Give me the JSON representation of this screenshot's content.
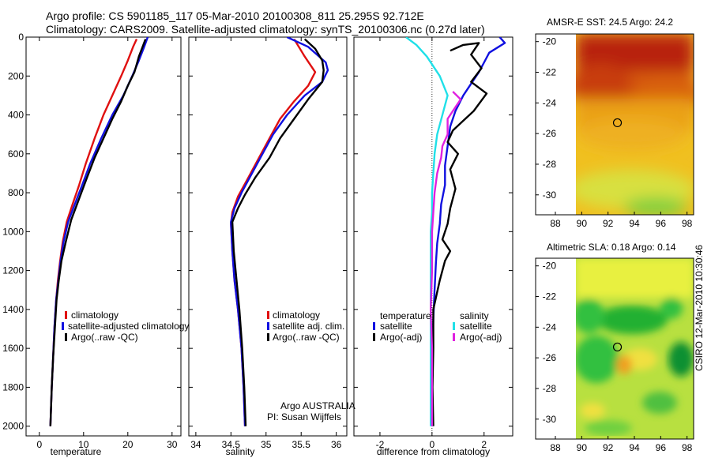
{
  "header": {
    "line1": "Argo profile: CS 5901185_117 05-Mar-2010 20100308_811 25.295S 92.712E",
    "line2": "Climatology: CARS2009. Satellite-adjusted climatology: synTS_20100306.nc (0.27d later)"
  },
  "stamp": "CSIRO 12-Mar-2010 10:30:46",
  "colors": {
    "climatology": "#e01010",
    "satellite": "#1010e0",
    "argo": "#000000",
    "sal_satellite": "#20e0e8",
    "sal_argo": "#e020e0"
  },
  "chart_data": [
    {
      "type": "line",
      "xlabel": "temperature",
      "ylabel": "",
      "xticks": [
        0,
        10,
        20,
        30
      ],
      "yticks": [
        0,
        200,
        400,
        600,
        800,
        1000,
        1200,
        1400,
        1600,
        1800,
        2000
      ],
      "xlim": [
        -3,
        32
      ],
      "ylim": [
        0,
        2050
      ],
      "legend": [
        "climatology",
        "satellite-adjusted climatology",
        "Argo(..raw -QC)"
      ],
      "series": [
        {
          "name": "climatology",
          "color": "#e01010",
          "points": [
            [
              22,
              10
            ],
            [
              21.2,
              50
            ],
            [
              20,
              120
            ],
            [
              18.5,
              200
            ],
            [
              16.5,
              300
            ],
            [
              14.5,
              400
            ],
            [
              12.5,
              520
            ],
            [
              10.5,
              650
            ],
            [
              9,
              760
            ],
            [
              7.5,
              860
            ],
            [
              6.2,
              950
            ],
            [
              5.3,
              1050
            ],
            [
              4.7,
              1150
            ],
            [
              4.2,
              1250
            ],
            [
              3.8,
              1350
            ],
            [
              3.4,
              1500
            ],
            [
              3.1,
              1650
            ],
            [
              2.8,
              1800
            ],
            [
              2.5,
              2000
            ]
          ]
        },
        {
          "name": "satellite-adjusted climatology",
          "color": "#1010e0",
          "points": [
            [
              24.5,
              0
            ],
            [
              23.7,
              50
            ],
            [
              22.5,
              120
            ],
            [
              21,
              200
            ],
            [
              19,
              300
            ],
            [
              16.5,
              400
            ],
            [
              14,
              520
            ],
            [
              11.5,
              650
            ],
            [
              9.7,
              760
            ],
            [
              8,
              860
            ],
            [
              6.5,
              950
            ],
            [
              5.5,
              1050
            ],
            [
              4.8,
              1150
            ],
            [
              4.3,
              1250
            ],
            [
              3.8,
              1350
            ],
            [
              3.4,
              1500
            ],
            [
              3.1,
              1650
            ],
            [
              2.8,
              1800
            ],
            [
              2.5,
              2000
            ]
          ]
        },
        {
          "name": "Argo(..raw -QC)",
          "color": "#000000",
          "points": [
            [
              24,
              10
            ],
            [
              23.5,
              40
            ],
            [
              22.5,
              100
            ],
            [
              21.5,
              180
            ],
            [
              20,
              250
            ],
            [
              18.5,
              330
            ],
            [
              16.5,
              420
            ],
            [
              14.5,
              520
            ],
            [
              12.5,
              620
            ],
            [
              10.8,
              720
            ],
            [
              9,
              830
            ],
            [
              7.2,
              940
            ],
            [
              6,
              1050
            ],
            [
              5,
              1150
            ],
            [
              4.4,
              1250
            ],
            [
              3.9,
              1350
            ],
            [
              3.5,
              1500
            ],
            [
              3.1,
              1650
            ],
            [
              2.8,
              1800
            ],
            [
              2.5,
              2000
            ]
          ]
        }
      ]
    },
    {
      "type": "line",
      "xlabel": "salinity",
      "ylabel": "",
      "xticks": [
        34,
        34.5,
        35,
        35.5,
        36
      ],
      "xlim": [
        33.9,
        36.15
      ],
      "ylim": [
        0,
        2050
      ],
      "legend": [
        "climatology",
        "satellite adj. clim.",
        "Argo(..raw -QC)"
      ],
      "annotations": [
        "Argo AUSTRALIA",
        "PI: Susan Wijffels"
      ],
      "series": [
        {
          "name": "climatology",
          "color": "#e01010",
          "points": [
            [
              35.4,
              10
            ],
            [
              35.55,
              100
            ],
            [
              35.7,
              180
            ],
            [
              35.6,
              250
            ],
            [
              35.4,
              330
            ],
            [
              35.2,
              420
            ],
            [
              35.05,
              520
            ],
            [
              34.9,
              620
            ],
            [
              34.75,
              720
            ],
            [
              34.6,
              820
            ],
            [
              34.52,
              900
            ],
            [
              34.5,
              960
            ],
            [
              34.52,
              1100
            ],
            [
              34.55,
              1250
            ],
            [
              34.6,
              1400
            ],
            [
              34.65,
              1600
            ],
            [
              34.68,
              1800
            ],
            [
              34.7,
              2000
            ]
          ]
        },
        {
          "name": "satellite adj. clim.",
          "color": "#1010e0",
          "points": [
            [
              35.3,
              0
            ],
            [
              35.6,
              50
            ],
            [
              35.85,
              130
            ],
            [
              35.88,
              170
            ],
            [
              35.8,
              230
            ],
            [
              35.55,
              300
            ],
            [
              35.3,
              400
            ],
            [
              35.1,
              500
            ],
            [
              34.95,
              600
            ],
            [
              34.8,
              700
            ],
            [
              34.65,
              800
            ],
            [
              34.55,
              880
            ],
            [
              34.5,
              950
            ],
            [
              34.52,
              1100
            ],
            [
              34.55,
              1250
            ],
            [
              34.6,
              1400
            ],
            [
              34.65,
              1600
            ],
            [
              34.68,
              1800
            ],
            [
              34.7,
              2000
            ]
          ]
        },
        {
          "name": "Argo(..raw -QC)",
          "color": "#000000",
          "points": [
            [
              35.55,
              10
            ],
            [
              35.7,
              60
            ],
            [
              35.8,
              120
            ],
            [
              35.82,
              170
            ],
            [
              35.8,
              230
            ],
            [
              35.6,
              320
            ],
            [
              35.4,
              420
            ],
            [
              35.2,
              520
            ],
            [
              35.05,
              620
            ],
            [
              34.85,
              720
            ],
            [
              34.7,
              810
            ],
            [
              34.6,
              880
            ],
            [
              34.52,
              950
            ],
            [
              34.54,
              1100
            ],
            [
              34.58,
              1250
            ],
            [
              34.62,
              1400
            ],
            [
              34.66,
              1600
            ],
            [
              34.69,
              1800
            ],
            [
              34.71,
              2000
            ]
          ]
        }
      ]
    },
    {
      "type": "line",
      "xlabel": "difference from climatology",
      "ylabel": "",
      "xticks": [
        -2,
        0,
        2
      ],
      "xlim": [
        -3,
        3.1
      ],
      "ylim": [
        0,
        2050
      ],
      "legend_groups": [
        {
          "title": "temperature",
          "items": [
            "satellite",
            "Argo(-adj)"
          ]
        },
        {
          "title": "salinity",
          "items": [
            "satellite",
            "Argo(-adj)"
          ]
        }
      ],
      "series": [
        {
          "name": "temperature satellite",
          "color": "#1010e0",
          "points": [
            [
              2.6,
              0
            ],
            [
              2.8,
              30
            ],
            [
              2.2,
              80
            ],
            [
              2,
              130
            ],
            [
              1.8,
              180
            ],
            [
              1.5,
              240
            ],
            [
              1.2,
              300
            ],
            [
              0.9,
              380
            ],
            [
              0.7,
              460
            ],
            [
              0.6,
              560
            ],
            [
              0.5,
              660
            ],
            [
              0.5,
              760
            ],
            [
              0.35,
              860
            ],
            [
              0.3,
              960
            ],
            [
              0.2,
              1060
            ],
            [
              0.15,
              1160
            ],
            [
              0.1,
              1300
            ],
            [
              0.05,
              1450
            ],
            [
              0.02,
              1600
            ],
            [
              0,
              1800
            ],
            [
              0,
              2000
            ]
          ]
        },
        {
          "name": "temperature Argo(-adj)",
          "color": "#000000",
          "points": [
            [
              0.7,
              70
            ],
            [
              1.2,
              40
            ],
            [
              1.8,
              30
            ],
            [
              1.5,
              90
            ],
            [
              1.9,
              160
            ],
            [
              1.5,
              230
            ],
            [
              2.1,
              290
            ],
            [
              1.6,
              380
            ],
            [
              1.2,
              430
            ],
            [
              0.8,
              480
            ],
            [
              0.6,
              540
            ],
            [
              1,
              600
            ],
            [
              0.7,
              680
            ],
            [
              0.9,
              780
            ],
            [
              0.7,
              880
            ],
            [
              0.6,
              960
            ],
            [
              0.4,
              1040
            ],
            [
              0.7,
              1100
            ],
            [
              0.5,
              1150
            ],
            [
              0.3,
              1250
            ],
            [
              0.05,
              1400
            ],
            [
              0.05,
              1600
            ],
            [
              0.02,
              1800
            ],
            [
              0.05,
              2000
            ]
          ]
        },
        {
          "name": "salinity satellite",
          "color": "#20e0e8",
          "points": [
            [
              -1,
              0
            ],
            [
              -0.6,
              40
            ],
            [
              -0.2,
              100
            ],
            [
              0.3,
              200
            ],
            [
              0.6,
              300
            ],
            [
              0.4,
              400
            ],
            [
              0.2,
              500
            ],
            [
              0.1,
              600
            ],
            [
              0.05,
              700
            ],
            [
              0,
              800
            ],
            [
              0,
              900
            ],
            [
              -0.05,
              1000
            ],
            [
              -0.05,
              1200
            ],
            [
              -0.05,
              1400
            ],
            [
              -0.05,
              1600
            ],
            [
              -0.05,
              1800
            ],
            [
              -0.05,
              2000
            ]
          ]
        },
        {
          "name": "salinity Argo(-adj)",
          "color": "#e020e0",
          "points": [
            [
              0.8,
              280
            ],
            [
              1.1,
              320
            ],
            [
              0.9,
              360
            ],
            [
              0.6,
              420
            ],
            [
              0.6,
              500
            ],
            [
              0.4,
              560
            ],
            [
              0.35,
              620
            ],
            [
              0.2,
              700
            ],
            [
              0.1,
              800
            ],
            [
              0.05,
              900
            ],
            [
              0,
              1000
            ],
            [
              0,
              1200
            ],
            [
              -0.05,
              1400
            ],
            [
              0,
              1600
            ],
            [
              0,
              1800
            ],
            [
              0,
              2000
            ]
          ]
        }
      ]
    },
    {
      "type": "heatmap",
      "title": "AMSR-E SST: 24.5 Argo: 24.2",
      "xticks": [
        88,
        90,
        92,
        94,
        96,
        98
      ],
      "yticks": [
        -20,
        -22,
        -24,
        -26,
        -28,
        -30
      ],
      "xlim": [
        86.5,
        98.5
      ],
      "ylim": [
        -31.3,
        -19.5
      ],
      "marker": [
        92.712,
        -25.295
      ]
    },
    {
      "type": "heatmap",
      "title": "Altimetric SLA: 0.18 Argo: 0.14",
      "xticks": [
        88,
        90,
        92,
        94,
        96,
        98
      ],
      "yticks": [
        -20,
        -22,
        -24,
        -26,
        -28,
        -30
      ],
      "xlim": [
        86.5,
        98.5
      ],
      "ylim": [
        -31.3,
        -19.5
      ],
      "marker": [
        92.712,
        -25.295
      ]
    }
  ]
}
